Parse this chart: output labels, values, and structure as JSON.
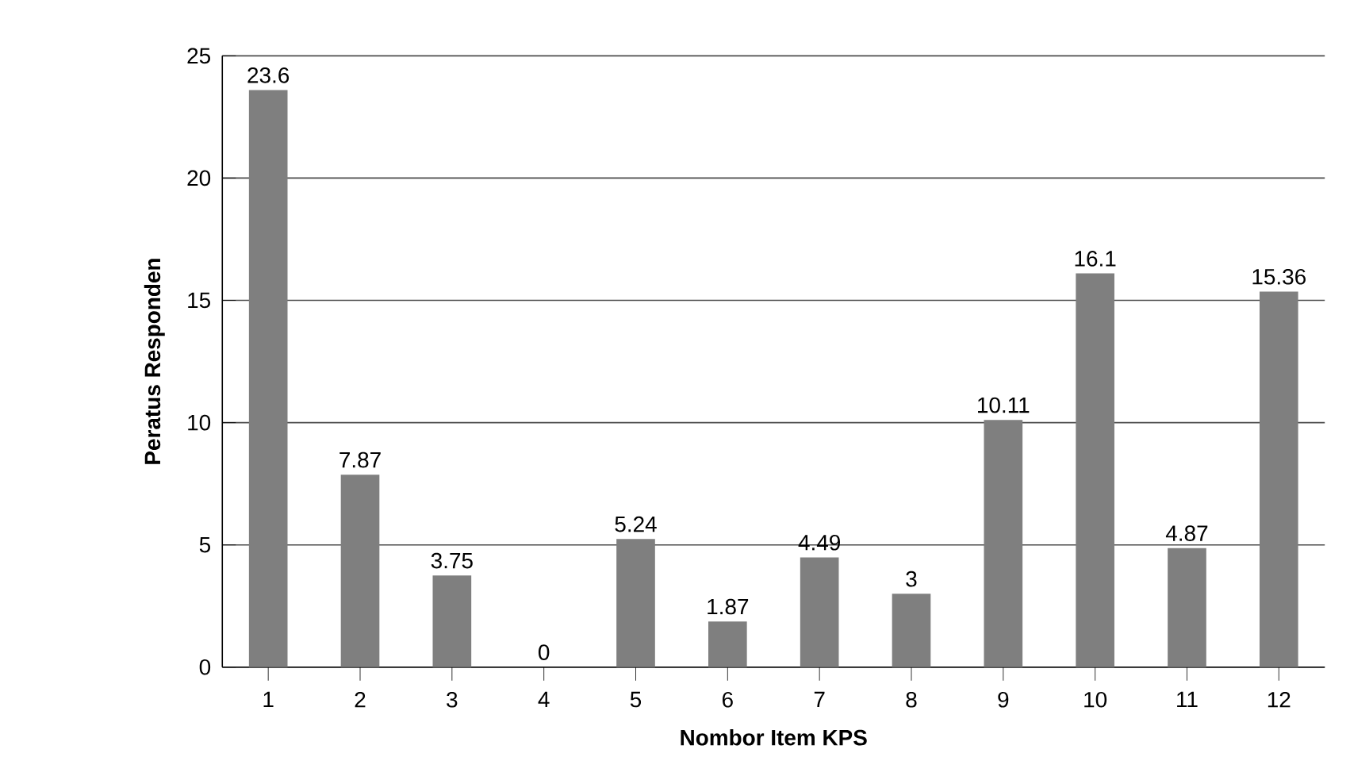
{
  "chart_data": {
    "type": "bar",
    "xlabel": "Nombor Item KPS",
    "ylabel": "Peratus Responden",
    "categories": [
      "1",
      "2",
      "3",
      "4",
      "5",
      "6",
      "7",
      "8",
      "9",
      "10",
      "11",
      "12"
    ],
    "values": [
      23.6,
      7.87,
      3.75,
      0,
      5.24,
      1.87,
      4.49,
      3,
      10.11,
      16.1,
      4.87,
      15.36
    ],
    "color": "#7f7f7f",
    "ylim": [
      0,
      25
    ],
    "yticks": [
      0,
      5,
      10,
      15,
      20,
      25
    ],
    "grid": "y",
    "data_labels": true
  }
}
